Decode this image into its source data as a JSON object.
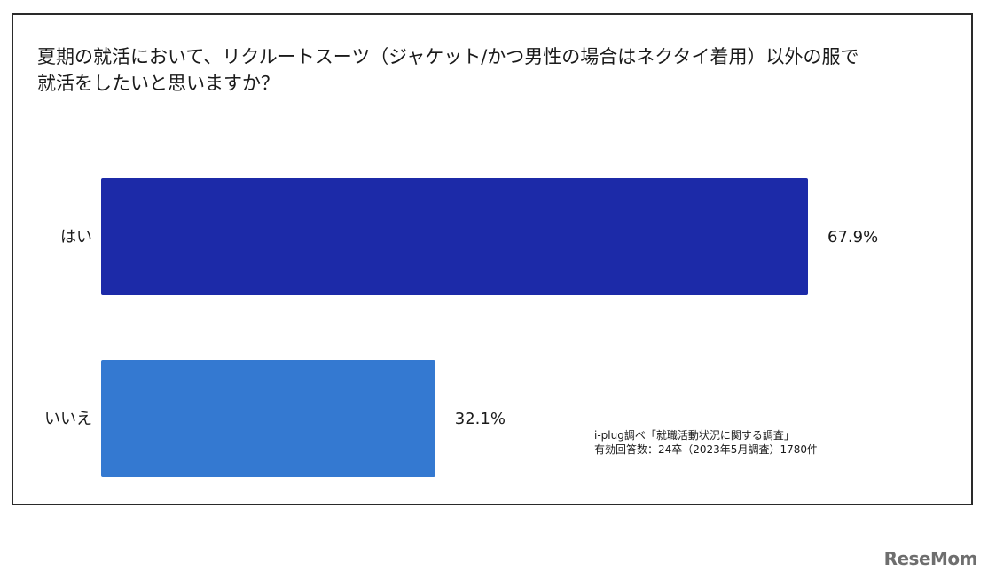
{
  "title_lines": [
    "夏期の就活において、リクルートスーツ（ジャケット/かつ男性の場合はネクタイ着用）以外の服で",
    "就活をしたいと思いますか？"
  ],
  "chart_data": {
    "type": "bar",
    "orientation": "horizontal",
    "categories": [
      "はい",
      "いいえ"
    ],
    "values": [
      67.9,
      32.1
    ],
    "value_labels": [
      "67.9%",
      "32.1%"
    ],
    "colors": [
      "#1c2aa8",
      "#3479d1"
    ],
    "xlim": [
      0,
      100
    ],
    "grid": false,
    "legend": "none"
  },
  "note_lines": [
    "i-plug調べ「就職活動状況に関する調査」",
    "有効回答数：24卒（2023年5月調査）1780件"
  ],
  "logo_text": "ReseMom"
}
